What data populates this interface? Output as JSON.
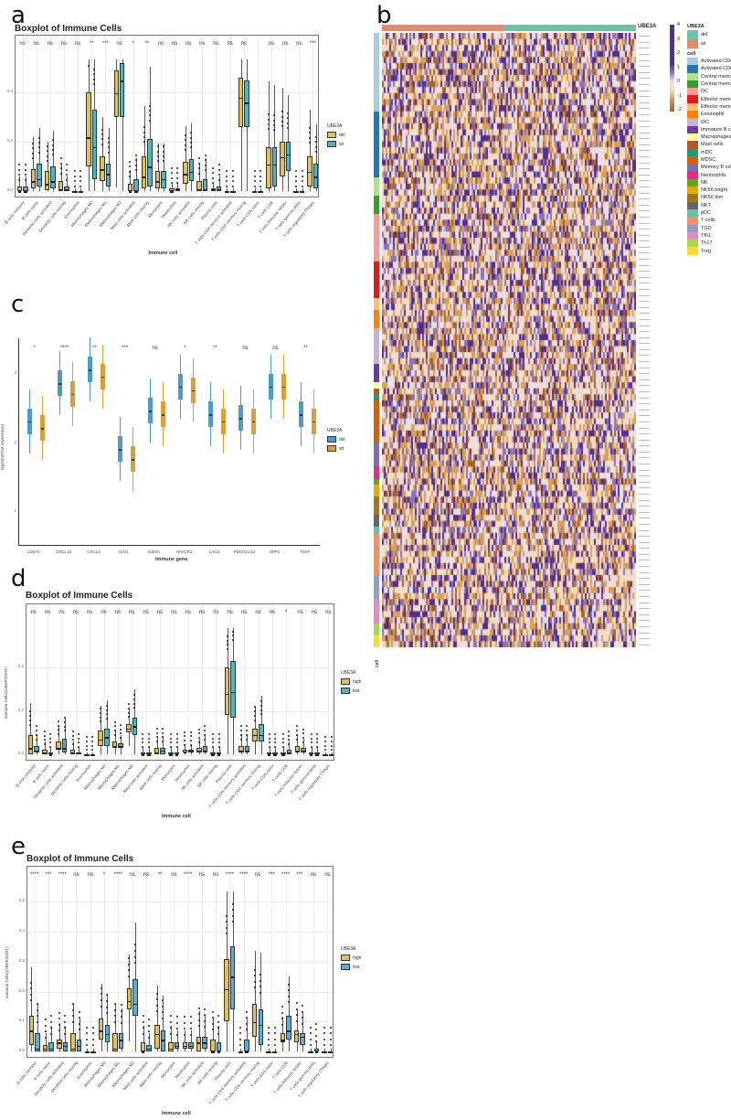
{
  "panels": {
    "a": {
      "letter": "a",
      "title": "Boxplot of Immune Cells"
    },
    "b": {
      "letter": "b"
    },
    "c": {
      "letter": "c"
    },
    "d": {
      "letter": "d",
      "title": "Boxplot of Immune Cells"
    },
    "e": {
      "letter": "e",
      "title": "Boxplot of Immune Cells"
    }
  },
  "chart_data": [
    {
      "id": "a",
      "type": "bar",
      "subtype": "boxplot",
      "title": "Boxplot of Immune Cells",
      "xlabel": "Immune cell",
      "ylabel": "Immune Cells(CIBERSORT)",
      "yticks": [
        "0.0",
        "0.2",
        "0.4"
      ],
      "ylim": [
        0,
        0.55
      ],
      "legend": {
        "title": "UBE3A",
        "entries": [
          {
            "label": "del",
            "color": "#E0C15A"
          },
          {
            "label": "wt",
            "color": "#4DB6C4"
          }
        ]
      },
      "categories": [
        "B cells memory",
        "B cells naive",
        "Dendritic cells activated",
        "Dendritic cells resting",
        "Eosinophils",
        "Macrophages M0",
        "Macrophages M1",
        "Macrophages M2",
        "Mast cells activated",
        "Mast cells resting",
        "Monocytes",
        "Neutrophils",
        "NK cells activated",
        "NK cells resting",
        "Plasma cells",
        "T cells CD4 memory activated",
        "T cells CD4 memory resting",
        "T cells CD4 naive",
        "T cells CD8",
        "T cells follicular helper",
        "T cells gamma delta",
        "T cells regulatory (Tregs)"
      ],
      "significance": [
        "ns",
        "ns",
        "ns",
        "ns",
        "ns",
        "**",
        "***",
        "ns",
        "*",
        "**",
        "ns",
        "ns",
        "ns",
        "ns",
        "ns",
        "ns",
        "ns",
        "",
        "ns",
        "ns",
        "ns",
        "***"
      ],
      "series": [
        {
          "name": "del",
          "q1": [
            0.0,
            0.01,
            0.005,
            0.0,
            0.0,
            0.1,
            0.04,
            0.3,
            0.0,
            0.01,
            0.01,
            0.0,
            0.03,
            0.0,
            0.0,
            0.0,
            0.26,
            0.0,
            0.01,
            0.06,
            0.0,
            0.02
          ],
          "median": [
            0.0,
            0.04,
            0.03,
            0.01,
            0.0,
            0.22,
            0.09,
            0.4,
            0.0,
            0.06,
            0.04,
            0.0,
            0.07,
            0.01,
            0.01,
            0.0,
            0.38,
            0.0,
            0.11,
            0.14,
            0.0,
            0.08
          ],
          "q3": [
            0.02,
            0.09,
            0.08,
            0.04,
            0.0,
            0.4,
            0.14,
            0.49,
            0.03,
            0.14,
            0.08,
            0.01,
            0.12,
            0.04,
            0.01,
            0.0,
            0.46,
            0.0,
            0.18,
            0.2,
            0.0,
            0.14
          ]
        },
        {
          "name": "wt",
          "q1": [
            0.0,
            0.02,
            0.01,
            0.0,
            0.0,
            0.05,
            0.02,
            0.3,
            0.0,
            0.02,
            0.01,
            0.0,
            0.04,
            0.0,
            0.0,
            0.0,
            0.26,
            0.0,
            0.02,
            0.08,
            0.0,
            0.01
          ],
          "median": [
            0.0,
            0.05,
            0.04,
            0.01,
            0.0,
            0.18,
            0.07,
            0.45,
            0.0,
            0.1,
            0.05,
            0.01,
            0.08,
            0.01,
            0.01,
            0.0,
            0.36,
            0.0,
            0.11,
            0.15,
            0.0,
            0.06
          ],
          "q3": [
            0.02,
            0.11,
            0.1,
            0.02,
            0.0,
            0.33,
            0.11,
            0.52,
            0.05,
            0.21,
            0.08,
            0.01,
            0.13,
            0.05,
            0.02,
            0.0,
            0.45,
            0.0,
            0.18,
            0.2,
            0.0,
            0.11
          ]
        }
      ]
    },
    {
      "id": "b",
      "type": "heatmap",
      "column_annotation": {
        "name": "UBE3A",
        "groups": [
          {
            "label": "wt",
            "color": "#E8896A",
            "fraction": 0.48
          },
          {
            "label": "del",
            "color": "#6CC4A4",
            "fraction": 0.52
          }
        ]
      },
      "color_scale": {
        "min": -2,
        "max": 4,
        "ticks": [
          "4",
          "3",
          "2",
          "1",
          "0",
          "-1",
          "-2"
        ],
        "colors": [
          "#54308C",
          "#8B73B8",
          "#E8E0EE",
          "#F4DCC0",
          "#D9A05A",
          "#A8601E"
        ]
      },
      "row_annotation_label": "cell",
      "cell_legend": [
        {
          "label": "Activated CD4",
          "color": "#A6CEE3"
        },
        {
          "label": "Activated CD8",
          "color": "#1F78B4"
        },
        {
          "label": "Central memory CD4",
          "color": "#B2DF8A"
        },
        {
          "label": "Central memory CD8",
          "color": "#33A02C"
        },
        {
          "label": "DC",
          "color": "#FB9A99"
        },
        {
          "label": "Effector memory CD4",
          "color": "#E31A1C"
        },
        {
          "label": "Effector memory CD8",
          "color": "#FDBF6F"
        },
        {
          "label": "Eosinophil",
          "color": "#FF7F00"
        },
        {
          "label": "iDC",
          "color": "#CAB2D6"
        },
        {
          "label": "Immature B cells",
          "color": "#6A3D9A"
        },
        {
          "label": "Macrophages",
          "color": "#FFFF99"
        },
        {
          "label": "Mast cells",
          "color": "#B15928"
        },
        {
          "label": "mDC",
          "color": "#1B9E77"
        },
        {
          "label": "MDSC",
          "color": "#D95F02"
        },
        {
          "label": "Memory B cells",
          "color": "#7570B3"
        },
        {
          "label": "Neutrophils",
          "color": "#E7298A"
        },
        {
          "label": "NK",
          "color": "#66A61E"
        },
        {
          "label": "NK56 bright",
          "color": "#E6AB02"
        },
        {
          "label": "NK56 dim",
          "color": "#A6761D"
        },
        {
          "label": "NKT",
          "color": "#666666"
        },
        {
          "label": "pDC",
          "color": "#66C2A5"
        },
        {
          "label": "T cells",
          "color": "#FC8D62"
        },
        {
          "label": "TGD",
          "color": "#8DA0CB"
        },
        {
          "label": "Tfh1",
          "color": "#E78AC3"
        },
        {
          "label": "Th17",
          "color": "#A6D854"
        },
        {
          "label": "Treg",
          "color": "#FFD92F"
        }
      ],
      "row_groups": [
        {
          "color": "#A6CEE3",
          "rows": 13
        },
        {
          "color": "#1F78B4",
          "rows": 11
        },
        {
          "color": "#B2DF8A",
          "rows": 3
        },
        {
          "color": "#33A02C",
          "rows": 3
        },
        {
          "color": "#FB9A99",
          "rows": 8
        },
        {
          "color": "#E31A1C",
          "rows": 6
        },
        {
          "color": "#FDBF6F",
          "rows": 2
        },
        {
          "color": "#FF7F00",
          "rows": 3
        },
        {
          "color": "#CAB2D6",
          "rows": 6
        },
        {
          "color": "#6A3D9A",
          "rows": 3
        },
        {
          "color": "#FFFF99",
          "rows": 1
        },
        {
          "color": "#B15928",
          "rows": 1
        },
        {
          "color": "#1B9E77",
          "rows": 1
        },
        {
          "color": "#D95F02",
          "rows": 7
        },
        {
          "color": "#7570B3",
          "rows": 4
        },
        {
          "color": "#E7298A",
          "rows": 2
        },
        {
          "color": "#66A61E",
          "rows": 1
        },
        {
          "color": "#E6AB02",
          "rows": 2
        },
        {
          "color": "#A6761D",
          "rows": 3
        },
        {
          "color": "#666666",
          "rows": 2
        },
        {
          "color": "#66C2A5",
          "rows": 1
        },
        {
          "color": "#FC8D62",
          "rows": 7
        },
        {
          "color": "#8DA0CB",
          "rows": 4
        },
        {
          "color": "#E78AC3",
          "rows": 4
        },
        {
          "color": "#A6D854",
          "rows": 2
        },
        {
          "color": "#FFD92F",
          "rows": 2
        }
      ],
      "gene_labels_note": "row labels too small to read reliably"
    },
    {
      "id": "c",
      "type": "bar",
      "subtype": "violin-boxplot",
      "xlabel": "Immune gene",
      "ylabel": "log10(mRNA expression)",
      "yticks": [
        "1",
        "2",
        "3"
      ],
      "legend": {
        "title": "UBE3A",
        "entries": [
          {
            "label": "del",
            "color": "#4E9BC8"
          },
          {
            "label": "wt",
            "color": "#D9A035"
          }
        ]
      },
      "categories": [
        "CD274",
        "CXCL10",
        "CXCL9",
        "IDO1",
        "GZMA",
        "HAVCR2",
        "LAG3",
        "PDCD1LG2",
        "SPP1",
        "TIGIT"
      ],
      "significance": [
        "*",
        "****",
        "**",
        "***",
        "ns",
        "*",
        "**",
        "ns",
        "ns",
        "**"
      ],
      "series": [
        {
          "name": "del",
          "median": [
            2.3,
            2.85,
            3.05,
            1.9,
            2.45,
            2.8,
            2.4,
            2.35,
            2.8,
            2.4
          ]
        },
        {
          "name": "wt",
          "median": [
            2.2,
            2.7,
            2.95,
            1.75,
            2.4,
            2.75,
            2.3,
            2.3,
            2.8,
            2.3
          ]
        }
      ]
    },
    {
      "id": "d",
      "type": "bar",
      "subtype": "boxplot",
      "title": "Boxplot of Immune Cells",
      "xlabel": "Immune cell",
      "ylabel": "Immune Cells(CIBERSORT)",
      "yticks": [
        "0.0",
        "0.2",
        "0.4"
      ],
      "legend": {
        "title": "UBE3A",
        "entries": [
          {
            "label": "high",
            "color": "#E0C15A"
          },
          {
            "label": "low",
            "color": "#4DB6C4"
          }
        ]
      },
      "categories": [
        "B cells memory",
        "B cells naive",
        "Dendritic cells activated",
        "Dendritic cells resting",
        "Eosinophils",
        "Macrophages M0",
        "Macrophages M1",
        "Macrophages M2",
        "Mast cells activated",
        "Mast cells resting",
        "Monocytes",
        "Neutrophils",
        "NK cells activated",
        "NK cells resting",
        "Plasma cells",
        "T cells CD4 memory activated",
        "T cells CD4 memory resting",
        "T cells CD4 naive",
        "T cells CD8",
        "T cells follicular helper",
        "T cells gamma delta",
        "T cells regulatory (Tregs)"
      ],
      "significance": [
        "ns",
        "ns",
        "ns",
        "ns",
        "ns",
        "ns",
        "ns",
        "ns",
        "ns",
        "ns",
        "ns",
        "ns",
        "ns",
        "ns",
        "ns",
        "ns",
        "ns",
        "ns",
        "*",
        "ns",
        "ns",
        "ns"
      ],
      "series": [
        {
          "name": "high",
          "q1": [
            0.0,
            0.0,
            0.02,
            0.0,
            0.0,
            0.04,
            0.03,
            0.1,
            0.0,
            0.0,
            0.0,
            0.01,
            0.01,
            0.0,
            0.18,
            0.01,
            0.06,
            0.0,
            0.0,
            0.01,
            0.0,
            0.0
          ],
          "median": [
            0.03,
            0.01,
            0.03,
            0.01,
            0.0,
            0.07,
            0.04,
            0.12,
            0.0,
            0.01,
            0.0,
            0.01,
            0.02,
            0.0,
            0.28,
            0.02,
            0.09,
            0.0,
            0.0,
            0.02,
            0.0,
            0.0
          ],
          "q3": [
            0.09,
            0.02,
            0.06,
            0.02,
            0.0,
            0.11,
            0.06,
            0.14,
            0.01,
            0.03,
            0.01,
            0.02,
            0.03,
            0.01,
            0.4,
            0.04,
            0.12,
            0.01,
            0.01,
            0.04,
            0.01,
            0.0
          ]
        },
        {
          "name": "low",
          "q1": [
            0.01,
            0.0,
            0.01,
            0.0,
            0.0,
            0.04,
            0.03,
            0.09,
            0.0,
            0.0,
            0.0,
            0.01,
            0.01,
            0.0,
            0.17,
            0.01,
            0.06,
            0.0,
            0.0,
            0.01,
            0.0,
            0.0
          ],
          "median": [
            0.02,
            0.0,
            0.03,
            0.01,
            0.0,
            0.08,
            0.04,
            0.13,
            0.0,
            0.02,
            0.0,
            0.02,
            0.02,
            0.0,
            0.29,
            0.02,
            0.09,
            0.0,
            0.01,
            0.02,
            0.0,
            0.0
          ],
          "q3": [
            0.04,
            0.01,
            0.07,
            0.01,
            0.0,
            0.12,
            0.05,
            0.17,
            0.01,
            0.03,
            0.01,
            0.02,
            0.04,
            0.01,
            0.43,
            0.04,
            0.14,
            0.01,
            0.02,
            0.03,
            0.01,
            0.0
          ]
        }
      ]
    },
    {
      "id": "e",
      "type": "bar",
      "subtype": "boxplot",
      "title": "Boxplot of Immune Cells",
      "xlabel": "Immune cell",
      "ylabel": "Immune Cells(CIBERSORT)",
      "yticks": [
        "0.0",
        "0.1",
        "0.2",
        "0.3",
        "0.4",
        "0.5"
      ],
      "legend": {
        "title": "UBE3A",
        "entries": [
          {
            "label": "high",
            "color": "#E0C15A"
          },
          {
            "label": "low",
            "color": "#5AAEDB"
          }
        ]
      },
      "categories": [
        "B cells memory",
        "B cells naive",
        "Dendritic cells activated",
        "Dendritic cells resting",
        "Eosinophils",
        "Macrophages M0",
        "Macrophages M1",
        "Macrophages M2",
        "Mast cells activated",
        "Mast cells resting",
        "Monocytes",
        "Neutrophils",
        "NK cells activated",
        "NK cells resting",
        "Plasma cells",
        "T cells CD4 memory activated",
        "T cells CD4 memory resting",
        "T cells CD4 naive",
        "T cells CD8",
        "T cells follicular helper",
        "T cells gamma delta",
        "T cells regulatory (Tregs)"
      ],
      "significance": [
        "****",
        "***",
        "****",
        "ns",
        "ns",
        "*",
        "****",
        "ns",
        "ns",
        "**",
        "ns",
        "****",
        "ns",
        "ns",
        "****",
        "****",
        "ns",
        "***",
        "****",
        "***",
        "ns",
        "ns"
      ],
      "series": [
        {
          "name": "high",
          "q1": [
            0.02,
            0.0,
            0.01,
            0.0,
            0.0,
            0.04,
            0.0,
            0.14,
            0.0,
            0.01,
            0.0,
            0.01,
            0.0,
            0.0,
            0.1,
            0.0,
            0.05,
            0.0,
            0.03,
            0.03,
            0.0,
            0.0
          ],
          "median": [
            0.07,
            0.01,
            0.03,
            0.01,
            0.0,
            0.07,
            0.01,
            0.17,
            0.0,
            0.06,
            0.01,
            0.02,
            0.03,
            0.0,
            0.21,
            0.0,
            0.1,
            0.0,
            0.04,
            0.06,
            0.0,
            0.0
          ],
          "q3": [
            0.12,
            0.02,
            0.04,
            0.06,
            0.0,
            0.11,
            0.06,
            0.21,
            0.03,
            0.09,
            0.03,
            0.03,
            0.05,
            0.04,
            0.31,
            0.0,
            0.16,
            0.0,
            0.06,
            0.07,
            0.0,
            0.0
          ]
        },
        {
          "name": "low",
          "q1": [
            0.0,
            0.0,
            0.0,
            0.0,
            0.0,
            0.03,
            0.01,
            0.12,
            0.0,
            0.0,
            0.01,
            0.01,
            0.01,
            0.0,
            0.14,
            0.0,
            0.02,
            0.0,
            0.04,
            0.02,
            0.0,
            0.0
          ],
          "median": [
            0.01,
            0.01,
            0.02,
            0.02,
            0.0,
            0.06,
            0.04,
            0.16,
            0.01,
            0.04,
            0.02,
            0.02,
            0.03,
            0.0,
            0.25,
            0.0,
            0.09,
            0.0,
            0.07,
            0.05,
            0.0,
            0.0
          ],
          "q3": [
            0.06,
            0.03,
            0.03,
            0.04,
            0.0,
            0.09,
            0.06,
            0.24,
            0.02,
            0.07,
            0.03,
            0.03,
            0.05,
            0.03,
            0.35,
            0.04,
            0.14,
            0.0,
            0.12,
            0.06,
            0.01,
            0.0
          ]
        }
      ]
    }
  ],
  "heatmap_labels": {
    "col_annotation_title": "UBE3A",
    "legend_ube3a_title": "UBE3A",
    "legend_cell_title": "cell",
    "row_annotation_axis": "cell"
  }
}
